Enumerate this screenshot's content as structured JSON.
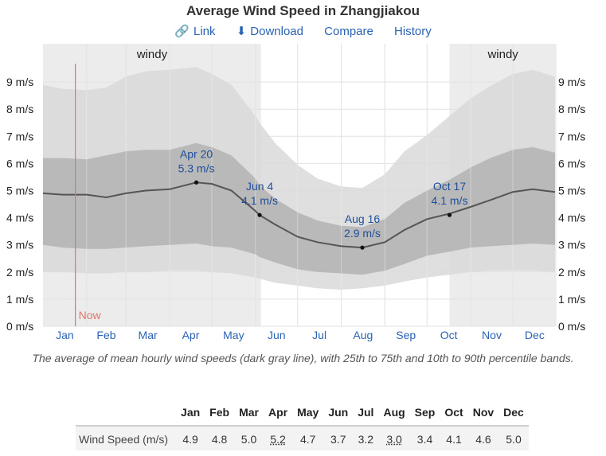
{
  "title": "Average Wind Speed in Zhangjiakou",
  "links": [
    {
      "icon": "link-icon",
      "glyph": "🔗",
      "label": "Link"
    },
    {
      "icon": "download-icon",
      "glyph": "⬇",
      "label": "Download"
    },
    {
      "icon": "",
      "glyph": "",
      "label": "Compare"
    },
    {
      "icon": "",
      "glyph": "",
      "label": "History"
    }
  ],
  "caption": "The average of mean hourly wind speeds (dark gray line), with 25th to 75th and 10th to 90th percentile bands.",
  "colors": {
    "outer_band": "#d9d9d9",
    "inner_band": "#b3b3b3",
    "season_shade": "#ececec",
    "mean_line": "#555555",
    "now_line": "#e0736b",
    "accent": "#2a62b4"
  },
  "chart_data": {
    "type": "area",
    "title": "Average Wind Speed in Zhangjiakou",
    "xlabel": "",
    "ylabel": "",
    "ylim": [
      0,
      9.5
    ],
    "y_ticks": [
      "0 m/s",
      "1 m/s",
      "2 m/s",
      "3 m/s",
      "4 m/s",
      "5 m/s",
      "6 m/s",
      "7 m/s",
      "8 m/s",
      "9 m/s"
    ],
    "y_tick_values": [
      0,
      1,
      2,
      3,
      4,
      5,
      6,
      7,
      8,
      9
    ],
    "months": [
      "Jan",
      "Feb",
      "Mar",
      "Apr",
      "May",
      "Jun",
      "Jul",
      "Aug",
      "Sep",
      "Oct",
      "Nov",
      "Dec"
    ],
    "grid": true,
    "x_doy": [
      1,
      15,
      32,
      46,
      60,
      74,
      91,
      110,
      121,
      135,
      152,
      155,
      166,
      182,
      196,
      213,
      228,
      244,
      258,
      274,
      290,
      305,
      319,
      335,
      349,
      365
    ],
    "mean": [
      4.9,
      4.85,
      4.85,
      4.75,
      4.9,
      5.0,
      5.05,
      5.3,
      5.25,
      5.0,
      4.25,
      4.1,
      3.75,
      3.3,
      3.1,
      2.95,
      2.9,
      3.1,
      3.55,
      3.95,
      4.15,
      4.4,
      4.65,
      4.95,
      5.05,
      4.95
    ],
    "p10": [
      2.0,
      2.0,
      1.95,
      1.95,
      2.0,
      2.0,
      2.05,
      2.05,
      2.0,
      1.95,
      1.8,
      1.75,
      1.6,
      1.5,
      1.4,
      1.35,
      1.4,
      1.5,
      1.65,
      1.8,
      1.9,
      2.0,
      2.05,
      2.05,
      2.05,
      2.0
    ],
    "p25": [
      3.0,
      2.9,
      2.85,
      2.85,
      2.9,
      2.95,
      3.0,
      3.05,
      2.95,
      2.9,
      2.65,
      2.55,
      2.35,
      2.1,
      2.0,
      1.95,
      1.9,
      2.05,
      2.3,
      2.6,
      2.75,
      2.9,
      2.95,
      3.0,
      3.05,
      3.0
    ],
    "p75": [
      6.2,
      6.2,
      6.15,
      6.3,
      6.45,
      6.5,
      6.5,
      6.75,
      6.6,
      6.3,
      5.45,
      5.2,
      4.7,
      4.2,
      3.9,
      3.7,
      3.65,
      3.95,
      4.55,
      5.0,
      5.4,
      5.85,
      6.2,
      6.5,
      6.6,
      6.4
    ],
    "p90": [
      8.9,
      8.75,
      8.7,
      8.8,
      9.2,
      9.4,
      9.45,
      9.55,
      9.3,
      8.9,
      7.75,
      7.5,
      6.75,
      5.95,
      5.45,
      5.15,
      5.1,
      5.6,
      6.45,
      7.05,
      7.75,
      8.4,
      8.85,
      9.3,
      9.45,
      9.2
    ],
    "windy_label": "windy",
    "windy_periods": [
      [
        "Jan 1",
        "Jun 4"
      ],
      [
        "Oct 17",
        "Dec 31"
      ]
    ],
    "now_label": "Now",
    "now_date": "Jan 24",
    "annotations": [
      {
        "date": "Apr 20",
        "value": "5.3 m/s",
        "doy": 110,
        "v": 5.3
      },
      {
        "date": "Jun 4",
        "value": "4.1 m/s",
        "doy": 155,
        "v": 4.1
      },
      {
        "date": "Aug 16",
        "value": "2.9 m/s",
        "doy": 228,
        "v": 2.9
      },
      {
        "date": "Oct 17",
        "value": "4.1 m/s",
        "doy": 290,
        "v": 4.1
      }
    ],
    "table": {
      "header": [
        "Jan",
        "Feb",
        "Mar",
        "Apr",
        "May",
        "Jun",
        "Jul",
        "Aug",
        "Sep",
        "Oct",
        "Nov",
        "Dec"
      ],
      "row_label": "Wind Speed (m/s)",
      "values": [
        "4.9",
        "4.8",
        "5.0",
        "5.2",
        "4.7",
        "3.7",
        "3.2",
        "3.0",
        "3.4",
        "4.1",
        "4.6",
        "5.0"
      ],
      "underlined": [
        "Apr",
        "Aug"
      ]
    }
  }
}
